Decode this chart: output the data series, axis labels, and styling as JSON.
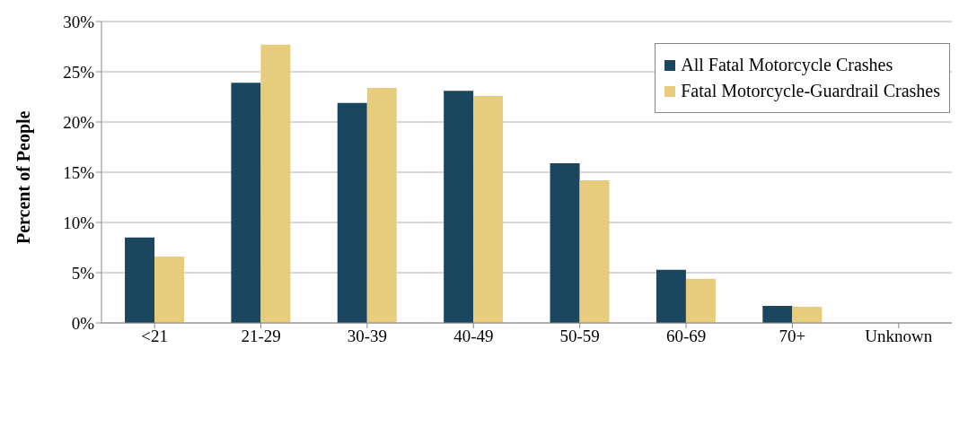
{
  "chart_data": {
    "type": "bar",
    "ylabel": "Percent of People",
    "categories": [
      "<21",
      "21-29",
      "30-39",
      "40-49",
      "50-59",
      "60-69",
      "70+",
      "Unknown"
    ],
    "series": [
      {
        "name": "All Fatal Motorcycle Crashes",
        "color": "#1b4660",
        "values": [
          8.5,
          23.9,
          21.9,
          23.1,
          15.9,
          5.3,
          1.7,
          0
        ]
      },
      {
        "name": "Fatal Motorcycle-Guardrail Crashes",
        "color": "#e8cc7e",
        "values": [
          6.6,
          27.7,
          23.4,
          22.6,
          14.2,
          4.4,
          1.6,
          0
        ]
      }
    ],
    "ylim": [
      0,
      30
    ],
    "yticks": [
      {
        "value": 0,
        "label": "0%"
      },
      {
        "value": 5,
        "label": "5%"
      },
      {
        "value": 10,
        "label": "10%"
      },
      {
        "value": 15,
        "label": "15%"
      },
      {
        "value": 20,
        "label": "20%"
      },
      {
        "value": 25,
        "label": "25%"
      },
      {
        "value": 30,
        "label": "30%"
      }
    ],
    "grid": "y",
    "legend": "top right"
  }
}
